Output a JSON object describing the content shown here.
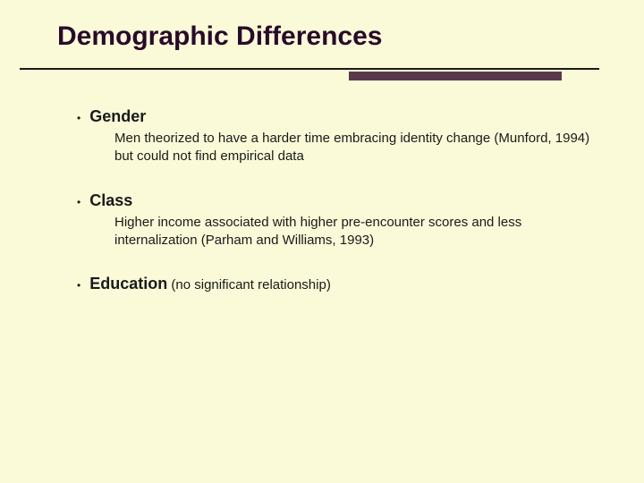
{
  "slide": {
    "title": "Demographic Differences",
    "background_color": "#fafad8",
    "title_color": "#2a0a2a",
    "text_color": "#1a1a1a",
    "rule": {
      "thin_color": "#1a1a1a",
      "thick_color": "#5a3a4a"
    },
    "bullets": [
      {
        "heading": "Gender",
        "note": "",
        "sub": "Men theorized to have a harder time embracing identity change (Munford, 1994) but could not find empirical data"
      },
      {
        "heading": "Class",
        "note": "",
        "sub": "Higher income associated with higher pre-encounter scores and less internalization (Parham and Williams, 1993)"
      },
      {
        "heading": "Education",
        "note": " (no significant relationship)",
        "sub": ""
      }
    ]
  }
}
